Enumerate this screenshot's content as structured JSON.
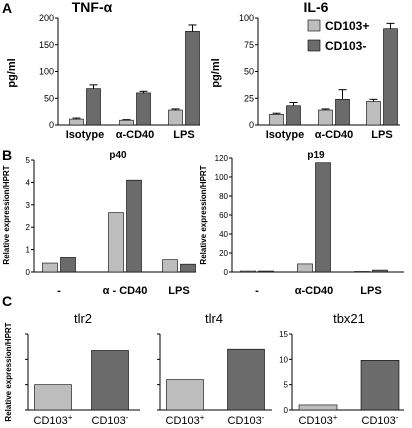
{
  "panels": {
    "A": "A",
    "B": "B",
    "C": "C"
  },
  "colors": {
    "cd103_pos": "#bdbdbd",
    "cd103_neg": "#6b6b6b",
    "axis": "#000000"
  },
  "chart_data": [
    {
      "id": "A1",
      "type": "bar",
      "title": "TNF-α",
      "ylabel": "pg/ml",
      "ylim": [
        0,
        200
      ],
      "yticks": [
        "0",
        "50",
        "100",
        "150",
        "200"
      ],
      "categories": [
        "Isotype",
        "α-CD40",
        "LPS"
      ],
      "series": [
        {
          "name": "CD103+",
          "values": [
            11,
            9,
            28
          ],
          "errors": [
            2,
            1,
            2
          ]
        },
        {
          "name": "CD103-",
          "values": [
            68,
            60,
            175
          ],
          "errors": [
            7,
            3,
            12
          ]
        }
      ]
    },
    {
      "id": "A2",
      "type": "bar",
      "title": "IL-6",
      "ylabel": "pg/ml",
      "ylim": [
        0,
        100
      ],
      "yticks": [
        "0",
        "25",
        "50",
        "75",
        "100"
      ],
      "categories": [
        "Isotype",
        "α-CD40",
        "LPS"
      ],
      "legend": [
        "CD103+",
        "CD103-"
      ],
      "legend_position": "top-right",
      "series": [
        {
          "name": "CD103+",
          "values": [
            10,
            14,
            22
          ],
          "errors": [
            1,
            1,
            2
          ]
        },
        {
          "name": "CD103-",
          "values": [
            18,
            24,
            90
          ],
          "errors": [
            3,
            9,
            5
          ]
        }
      ]
    },
    {
      "id": "B1",
      "type": "bar",
      "title": "p40",
      "ylabel": "Relative expression/HPRT",
      "ylim": [
        0,
        5
      ],
      "yticks": [
        "0",
        "1",
        "2",
        "3",
        "4",
        "5"
      ],
      "categories": [
        "-",
        "α - CD40",
        "LPS"
      ],
      "series": [
        {
          "name": "CD103+",
          "values": [
            0.4,
            2.65,
            0.55
          ]
        },
        {
          "name": "CD103-",
          "values": [
            0.65,
            4.1,
            0.35
          ]
        }
      ]
    },
    {
      "id": "B2",
      "type": "bar",
      "title": "p19",
      "ylabel": "Relative expression/HPRT",
      "ylim": [
        0,
        120
      ],
      "yticks": [
        "0",
        "20",
        "40",
        "60",
        "80",
        "100",
        "120"
      ],
      "categories": [
        "-",
        "α-CD40",
        "LPS"
      ],
      "series": [
        {
          "name": "CD103+",
          "values": [
            1,
            8.5,
            0.5
          ]
        },
        {
          "name": "CD103-",
          "values": [
            1,
            115,
            2
          ]
        }
      ]
    },
    {
      "id": "C1",
      "type": "bar",
      "title": "tlr2",
      "ylabel": "Relative expression/HPRT",
      "ylim": [
        0,
        3
      ],
      "yticks": [
        "0",
        "1",
        "2",
        "3"
      ],
      "categories": [
        "CD103+",
        "CD103-"
      ],
      "series": [
        {
          "values": [
            1,
            2.35
          ]
        }
      ]
    },
    {
      "id": "C2",
      "type": "bar",
      "title": "tlr4",
      "ylim": [
        0,
        3
      ],
      "yticks": [
        "0",
        "1",
        "2",
        "3"
      ],
      "categories": [
        "CD103+",
        "CD103-"
      ],
      "series": [
        {
          "values": [
            1.2,
            2.4
          ]
        }
      ]
    },
    {
      "id": "C3",
      "type": "bar",
      "title": "tbx21",
      "ylim": [
        0,
        15
      ],
      "yticks": [
        "0",
        "5",
        "10",
        "15"
      ],
      "categories": [
        "CD103+",
        "CD103-"
      ],
      "series": [
        {
          "values": [
            1,
            9.8
          ]
        }
      ]
    }
  ]
}
